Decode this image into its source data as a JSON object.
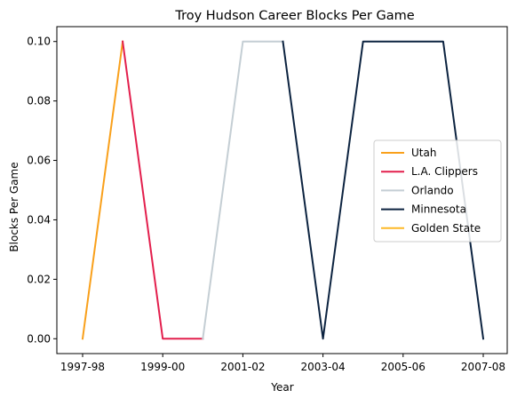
{
  "chart_data": {
    "type": "line",
    "title": "Troy Hudson Career Blocks Per Game",
    "xlabel": "Year",
    "ylabel": "Blocks Per Game",
    "categories": [
      "1997-98",
      "1998-99",
      "1999-00",
      "2000-01",
      "2001-02",
      "2002-03",
      "2003-04",
      "2004-05",
      "2005-06",
      "2006-07",
      "2007-08"
    ],
    "xticks": [
      "1997-98",
      "1999-00",
      "2001-02",
      "2003-04",
      "2005-06",
      "2007-08"
    ],
    "yticks": [
      "0.00",
      "0.02",
      "0.04",
      "0.06",
      "0.08",
      "0.10"
    ],
    "ylim": [
      -0.005,
      0.105
    ],
    "grid": false,
    "legend_position": "center-right",
    "series": [
      {
        "name": "Utah",
        "color": "#F9A01B",
        "points": [
          {
            "x": "1997-98",
            "y": 0.0
          },
          {
            "x": "1998-99",
            "y": 0.1
          }
        ]
      },
      {
        "name": "L.A. Clippers",
        "color": "#E31F4D",
        "points": [
          {
            "x": "1998-99",
            "y": 0.1
          },
          {
            "x": "1999-00",
            "y": 0.0
          },
          {
            "x": "2000-01",
            "y": 0.0
          }
        ]
      },
      {
        "name": "Orlando",
        "color": "#C4CED4",
        "points": [
          {
            "x": "2000-01",
            "y": 0.0
          },
          {
            "x": "2001-02",
            "y": 0.1
          },
          {
            "x": "2002-03",
            "y": 0.1
          }
        ]
      },
      {
        "name": "Minnesota",
        "color": "#0C2340",
        "points": [
          {
            "x": "2002-03",
            "y": 0.1
          },
          {
            "x": "2003-04",
            "y": 0.0
          },
          {
            "x": "2004-05",
            "y": 0.1
          },
          {
            "x": "2005-06",
            "y": 0.1
          },
          {
            "x": "2006-07",
            "y": 0.1
          },
          {
            "x": "2007-08",
            "y": 0.0
          }
        ]
      },
      {
        "name": "Golden State",
        "color": "#FDB927",
        "points": []
      }
    ]
  }
}
